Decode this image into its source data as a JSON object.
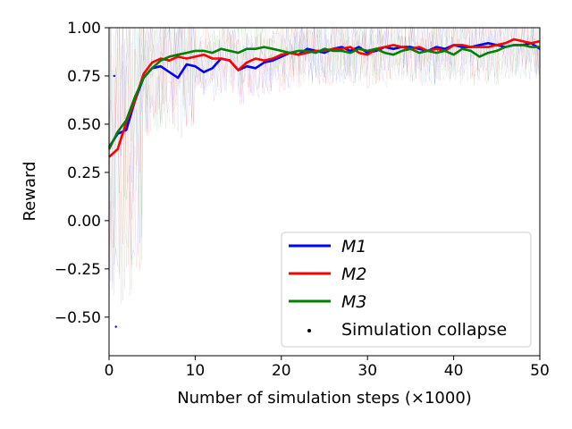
{
  "chart_data": {
    "type": "line",
    "title": "",
    "xlabel": "Number of simulation steps (×1000)",
    "ylabel": "Reward",
    "xlim": [
      0,
      50
    ],
    "ylim": [
      -0.7,
      1.0
    ],
    "xticks": [
      0,
      10,
      20,
      30,
      40,
      50
    ],
    "xtick_labels": [
      "0",
      "10",
      "20",
      "30",
      "40",
      "50"
    ],
    "yticks": [
      -0.5,
      -0.25,
      0.0,
      0.25,
      0.5,
      0.75,
      1.0
    ],
    "ytick_labels": [
      "−0.50",
      "−0.25",
      "0.00",
      "0.25",
      "0.50",
      "0.75",
      "1.00"
    ],
    "grid": false,
    "legend_position": "bottom-right",
    "series": [
      {
        "name": "M1",
        "color": "#0000ff",
        "x": [
          0,
          1,
          2,
          3,
          4,
          5,
          6,
          7,
          8,
          9,
          10,
          11,
          12,
          13,
          14,
          15,
          16,
          17,
          18,
          19,
          20,
          21,
          22,
          23,
          24,
          25,
          26,
          27,
          28,
          29,
          30,
          31,
          32,
          33,
          34,
          35,
          36,
          37,
          38,
          39,
          40,
          41,
          42,
          43,
          44,
          45,
          46,
          47,
          48,
          49,
          50
        ],
        "values": [
          0.38,
          0.45,
          0.47,
          0.62,
          0.74,
          0.79,
          0.8,
          0.77,
          0.74,
          0.81,
          0.8,
          0.77,
          0.79,
          0.84,
          0.83,
          0.78,
          0.8,
          0.79,
          0.82,
          0.83,
          0.85,
          0.87,
          0.86,
          0.89,
          0.88,
          0.87,
          0.89,
          0.9,
          0.88,
          0.9,
          0.87,
          0.88,
          0.9,
          0.89,
          0.9,
          0.9,
          0.89,
          0.88,
          0.9,
          0.89,
          0.91,
          0.9,
          0.9,
          0.91,
          0.92,
          0.91,
          0.9,
          0.91,
          0.91,
          0.92,
          0.89
        ]
      },
      {
        "name": "M2",
        "color": "#ff0000",
        "x": [
          0,
          1,
          2,
          3,
          4,
          5,
          6,
          7,
          8,
          9,
          10,
          11,
          12,
          13,
          14,
          15,
          16,
          17,
          18,
          19,
          20,
          21,
          22,
          23,
          24,
          25,
          26,
          27,
          28,
          29,
          30,
          31,
          32,
          33,
          34,
          35,
          36,
          37,
          38,
          39,
          40,
          41,
          42,
          43,
          44,
          45,
          46,
          47,
          48,
          49,
          50
        ],
        "values": [
          0.33,
          0.37,
          0.51,
          0.62,
          0.76,
          0.82,
          0.84,
          0.83,
          0.85,
          0.84,
          0.85,
          0.86,
          0.84,
          0.84,
          0.83,
          0.78,
          0.82,
          0.84,
          0.83,
          0.84,
          0.86,
          0.87,
          0.86,
          0.87,
          0.88,
          0.88,
          0.89,
          0.89,
          0.9,
          0.87,
          0.86,
          0.89,
          0.9,
          0.91,
          0.9,
          0.89,
          0.9,
          0.88,
          0.89,
          0.88,
          0.91,
          0.91,
          0.9,
          0.9,
          0.9,
          0.91,
          0.92,
          0.94,
          0.93,
          0.92,
          0.93
        ]
      },
      {
        "name": "M3",
        "color": "#008000",
        "x": [
          0,
          1,
          2,
          3,
          4,
          5,
          6,
          7,
          8,
          9,
          10,
          11,
          12,
          13,
          14,
          15,
          16,
          17,
          18,
          19,
          20,
          21,
          22,
          23,
          24,
          25,
          26,
          27,
          28,
          29,
          30,
          31,
          32,
          33,
          34,
          35,
          36,
          37,
          38,
          39,
          40,
          41,
          42,
          43,
          44,
          45,
          46,
          47,
          48,
          49,
          50
        ],
        "values": [
          0.37,
          0.46,
          0.52,
          0.64,
          0.74,
          0.79,
          0.83,
          0.85,
          0.86,
          0.87,
          0.88,
          0.88,
          0.87,
          0.89,
          0.88,
          0.87,
          0.89,
          0.89,
          0.9,
          0.89,
          0.88,
          0.87,
          0.88,
          0.88,
          0.87,
          0.89,
          0.88,
          0.88,
          0.87,
          0.89,
          0.88,
          0.89,
          0.87,
          0.86,
          0.88,
          0.89,
          0.87,
          0.88,
          0.87,
          0.88,
          0.86,
          0.89,
          0.88,
          0.85,
          0.87,
          0.88,
          0.9,
          0.91,
          0.91,
          0.9,
          0.9
        ]
      }
    ],
    "collapse_points": [
      {
        "x": 0.6,
        "y": 0.75,
        "color": "#0000ff"
      },
      {
        "x": 0.8,
        "y": -0.55,
        "color": "#0000ff"
      }
    ],
    "legend": [
      {
        "label": "M1",
        "color": "#0000ff",
        "kind": "line"
      },
      {
        "label": "M2",
        "color": "#ff0000",
        "kind": "line"
      },
      {
        "label": "M3",
        "color": "#008000",
        "kind": "line"
      },
      {
        "label": "Simulation collapse",
        "color": "#000000",
        "kind": "point"
      }
    ]
  }
}
